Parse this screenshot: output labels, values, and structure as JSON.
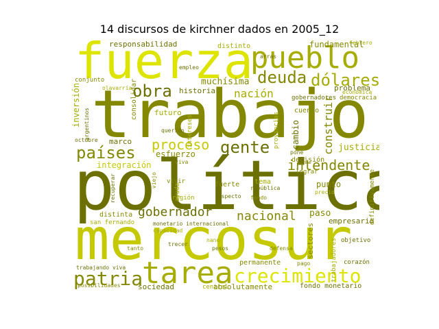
{
  "figure": {
    "title": "14 discursos de kirchner dados en 2005_12"
  },
  "palette": {
    "yellow": "#dde400",
    "olive": "#848800",
    "darkolive": "#6b7000",
    "mid": "#a6ac00",
    "light": "#c4c900"
  },
  "words": {
    "fuerza": "fuerza",
    "pueblo": "pueblo",
    "trabajo": "trabajo",
    "politica": "política",
    "mercosur": "mercosur",
    "tarea": "tarea",
    "patria": "patria",
    "crecimiento": "crecimiento",
    "deuda": "deuda",
    "dolares": "dólares",
    "obra": "obra",
    "paises": "países",
    "proceso": "proceso",
    "gente": "gente",
    "intendente": "intendente",
    "nacion": "nación",
    "gobernador": "gobernador",
    "nacional": "nacional",
    "responsabilidad": "responsabilidad",
    "fundamental": "fundamental",
    "distinto": "distinto",
    "muchisima": "muchísima",
    "historia": "historia",
    "problema": "problema",
    "democracia": "democracia",
    "justicia": "justicia",
    "construir": "construir",
    "inversion": "inversión",
    "integracion": "integración",
    "esfuerzo": "esfuerzo",
    "futuro": "futuro",
    "marco": "marco",
    "decision": "decisión",
    "cambio": "cambio",
    "gobernadores": "gobernadores",
    "cuenco": "cuenco",
    "paso": "paso",
    "empresario": "empresario",
    "punto": "punto",
    "fuerte": "fuerte",
    "tema": "tema",
    "republica": "república",
    "distinta": "distinta",
    "san_fernando": "san fernando",
    "monetario_internacional": "monetario internacional",
    "permanente": "permanente",
    "sectores": "sectores",
    "objetivo": "objetivo",
    "corazon": "corazón",
    "trabajando_viva": "trabajando viva",
    "posibilidades": "posibilidades",
    "sociedad": "sociedad",
    "central": "central",
    "absolutamente": "absolutamente",
    "fondo_monetario": "fondo monetario",
    "consolidar": "consolidar",
    "octubre": "octubre",
    "conjunto": "conjunto",
    "olavarria": "olavarría",
    "empleo": "empleo",
    "pago": "pago",
    "definitivamente": "definitivamente",
    "intereses": "intereses",
    "provincias": "provincias",
    "vivir": "vivir",
    "ayuda": "ayuda",
    "region": "región",
    "respecto": "respecto",
    "fondo": "fondo",
    "lograr": "lograr",
    "precio": "precio",
    "trabajadores": "trabajadores",
    "febrero": "febrero",
    "argentinos": "argentinos",
    "querido": "querido",
    "recuperar": "recuperar",
    "viejo": "viejo",
    "viva": "viva",
    "pone": "pone",
    "arras": "arras",
    "tanto": "tanto",
    "capacidad": "capacidad",
    "nano": "nano",
    "pesos": "pesos",
    "defensa": "defensa",
    "economica": "económica",
    "trecer": "trecer"
  }
}
